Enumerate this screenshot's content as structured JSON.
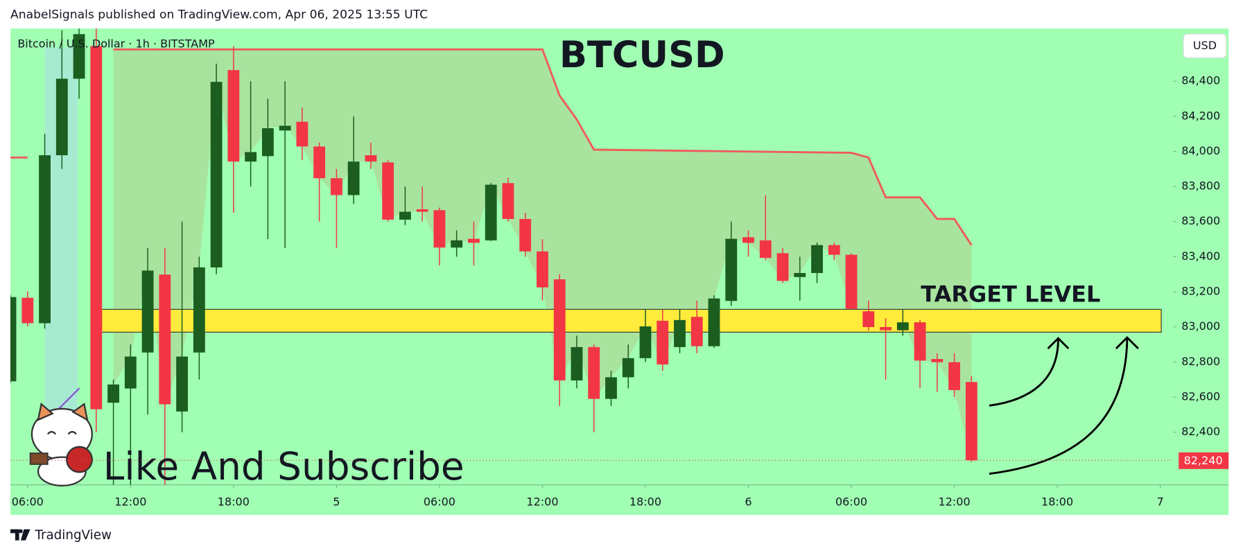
{
  "header": "AnabelSignals published on TradingView.com, Apr 06, 2025 13:55 UTC",
  "footer": "TradingView",
  "annotation": "Like And Subscribe",
  "chart_data": {
    "type": "candlestick",
    "title": "BTCUSD",
    "subtitle": "Bitcoin / U.S. Dollar · 1h · BITSTAMP",
    "currency": "USD",
    "up_color": "#1b5e20",
    "down_color": "#f23645",
    "x": [
      5,
      6,
      7,
      8,
      9,
      10,
      11,
      12,
      13,
      14,
      15,
      16,
      17,
      18,
      19,
      20,
      21,
      22,
      23,
      24,
      25,
      26,
      27,
      28,
      29,
      30,
      31,
      32,
      33,
      34,
      35,
      36,
      37,
      38,
      39,
      40,
      41,
      42,
      43,
      44,
      45,
      46,
      47,
      48,
      49,
      50,
      51,
      52,
      53,
      54,
      55,
      56,
      57,
      58,
      59,
      60,
      61
    ],
    "open": [
      82690,
      83166,
      83021,
      83978,
      84414,
      84600,
      82568,
      82649,
      82854,
      83298,
      82518,
      82854,
      83339,
      84463,
      83942,
      83973,
      84119,
      84169,
      84028,
      83847,
      83751,
      83978,
      83937,
      83611,
      83670,
      83665,
      83452,
      83502,
      83493,
      83819,
      83615,
      83430,
      83271,
      82695,
      82885,
      82590,
      82713,
      82822,
      83035,
      82885,
      83057,
      82890,
      83148,
      83511,
      83493,
      83420,
      83284,
      83307,
      83466,
      83411,
      83089,
      82999,
      82981,
      83026,
      82817,
      82799,
      82686
    ],
    "high": [
      83180,
      83203,
      84100,
      84690,
      84700,
      84700,
      82700,
      82900,
      83450,
      83450,
      83600,
      83400,
      84500,
      84600,
      84400,
      84300,
      84400,
      84250,
      84050,
      83900,
      84200,
      84050,
      83950,
      83800,
      83800,
      83680,
      83550,
      83600,
      83820,
      83850,
      83650,
      83500,
      83300,
      82950,
      82900,
      82750,
      82900,
      83100,
      83100,
      83100,
      83150,
      83180,
      83600,
      83550,
      83750,
      83450,
      83400,
      83480,
      83480,
      83420,
      83150,
      83050,
      83100,
      83040,
      82850,
      82850,
      82720
    ],
    "low": [
      82680,
      83003,
      82990,
      83900,
      84300,
      82400,
      82100,
      82100,
      82500,
      82050,
      82400,
      82700,
      83300,
      83650,
      83800,
      83500,
      83450,
      83950,
      83600,
      83450,
      83700,
      83900,
      83600,
      83580,
      83600,
      83350,
      83400,
      83350,
      83490,
      83600,
      83400,
      83150,
      82550,
      82650,
      82400,
      82550,
      82650,
      82800,
      82750,
      82850,
      82850,
      82880,
      83120,
      83400,
      83380,
      83250,
      83150,
      83250,
      83380,
      83100,
      82980,
      82700,
      82950,
      82650,
      82630,
      82600,
      82230
    ],
    "close": [
      83170,
      83021,
      83978,
      84414,
      84668,
      82531,
      82672,
      82831,
      83321,
      82559,
      82831,
      83339,
      84396,
      83942,
      83996,
      84132,
      84146,
      84028,
      83847,
      83751,
      83942,
      83942,
      83611,
      83656,
      83656,
      83452,
      83493,
      83479,
      83810,
      83615,
      83430,
      83225,
      82695,
      82885,
      82590,
      82713,
      82822,
      83003,
      82786,
      83039,
      82890,
      83162,
      83502,
      83479,
      83393,
      83262,
      83307,
      83466,
      83411,
      83103,
      82999,
      82981,
      83026,
      82808,
      82799,
      82640,
      82240
    ],
    "indicator": {
      "color": "#f05a5a",
      "x": [
        5,
        6,
        7,
        11,
        36,
        37,
        38,
        39,
        54,
        55,
        56,
        58,
        59,
        60,
        61
      ],
      "values": [
        83965,
        83965,
        null,
        84581,
        84581,
        84318,
        84182,
        84010,
        83992,
        83965,
        83738,
        83738,
        83615,
        83615,
        83466
      ]
    },
    "target_zone": {
      "label": "TARGET LEVEL",
      "low": 82970,
      "high": 83100,
      "color": "#ffeb3b"
    },
    "last_price": {
      "value": 82240,
      "label": "82,240"
    },
    "xlim": [
      5,
      72.75
    ],
    "ylim": [
      82100,
      84700
    ],
    "xticks": [
      {
        "value": 6,
        "label": "06:00"
      },
      {
        "value": 12,
        "label": "12:00"
      },
      {
        "value": 18,
        "label": "18:00"
      },
      {
        "value": 24,
        "label": "5"
      },
      {
        "value": 30,
        "label": "06:00"
      },
      {
        "value": 36,
        "label": "12:00"
      },
      {
        "value": 42,
        "label": "18:00"
      },
      {
        "value": 48,
        "label": "6"
      },
      {
        "value": 54,
        "label": "06:00"
      },
      {
        "value": 60,
        "label": "12:00"
      },
      {
        "value": 66,
        "label": "18:00"
      },
      {
        "value": 72,
        "label": "7"
      }
    ],
    "yticks": [
      {
        "value": 82400,
        "label": "82,400"
      },
      {
        "value": 82600,
        "label": "82,600"
      },
      {
        "value": 82800,
        "label": "82,800"
      },
      {
        "value": 83000,
        "label": "83,000"
      },
      {
        "value": 83200,
        "label": "83,200"
      },
      {
        "value": 83400,
        "label": "83,400"
      },
      {
        "value": 83600,
        "label": "83,600"
      },
      {
        "value": 83800,
        "label": "83,800"
      },
      {
        "value": 84000,
        "label": "84,000"
      },
      {
        "value": 84200,
        "label": "84,200"
      },
      {
        "value": 84400,
        "label": "84,400"
      }
    ]
  }
}
